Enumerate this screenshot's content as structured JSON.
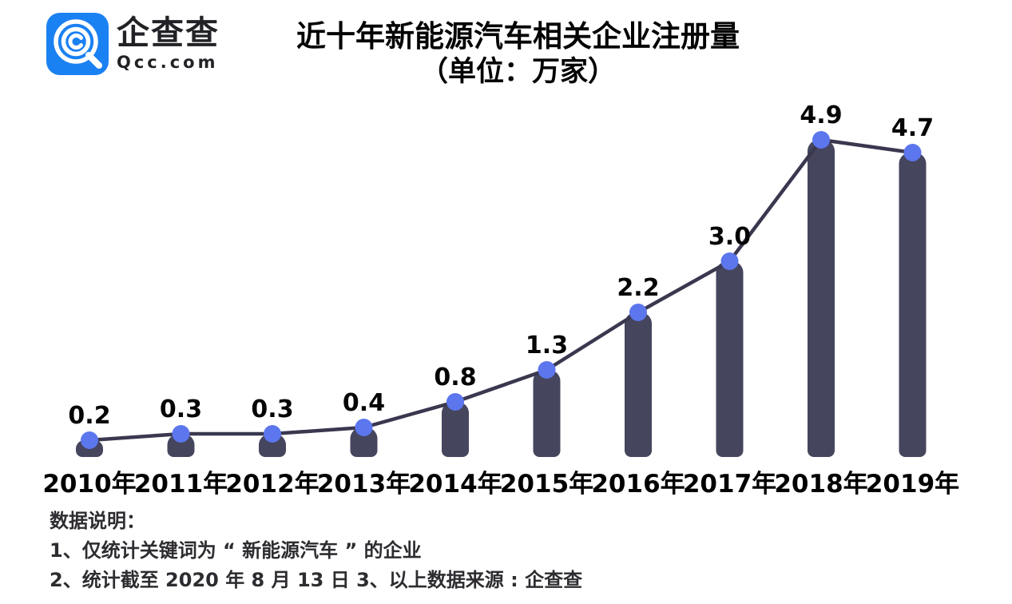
{
  "logo": {
    "brand_cn": "企查查",
    "brand_en": "Qcc.com",
    "icon": "qcc-magnifier-icon",
    "icon_color": "#1a81f2"
  },
  "title": {
    "line1": "近十年新能源汽车相关企业注册量",
    "line2": "（单位：万家）"
  },
  "chart_data": {
    "type": "bar",
    "overlay": "line+markers",
    "title": "近十年新能源汽车相关企业注册量",
    "unit": "万家",
    "categories": [
      "2010年",
      "2011年",
      "2012年",
      "2013年",
      "2014年",
      "2015年",
      "2016年",
      "2017年",
      "2018年",
      "2019年"
    ],
    "values": [
      0.2,
      0.3,
      0.3,
      0.4,
      0.8,
      1.3,
      2.2,
      3.0,
      4.9,
      4.7
    ],
    "value_labels": [
      "0.2",
      "0.3",
      "0.3",
      "0.4",
      "0.8",
      "1.3",
      "2.2",
      "3.0",
      "4.9",
      "4.7"
    ],
    "ylim": [
      0,
      5.2
    ],
    "grid": false,
    "legend": false,
    "axes_visible": false,
    "bar_color": "#45455e",
    "line_color": "#39384f",
    "dot_color": "#5c76ed",
    "label_color": "#050505",
    "tick_label_color": "#000000"
  },
  "notes": {
    "heading": "数据说明：",
    "line1": "1、仅统计关键词为 “ 新能源汽车 ” 的企业",
    "line2": "2、统计截至 2020 年 8 月 13 日  3、以上数据来源 : 企查查"
  }
}
